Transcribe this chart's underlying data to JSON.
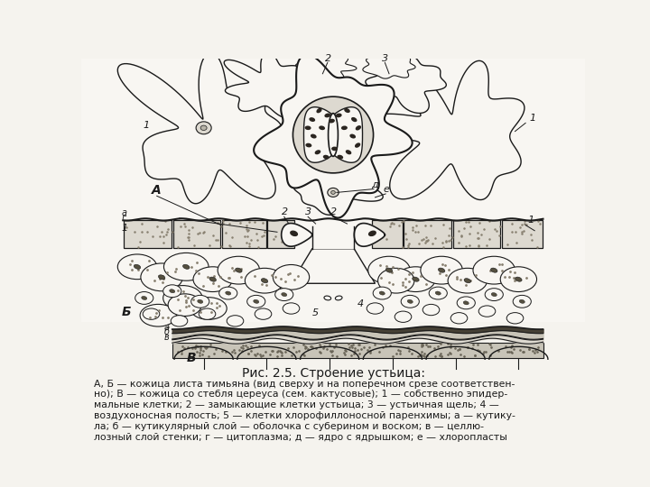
{
  "title": "Рис. 2.5. Строение устьица:",
  "caption_lines": [
    "А, Б — кожица листа тимьяна (вид сверху и на поперечном срезе соответствен-",
    "но); В — кожица со стебля цереуса (сем. кактусовые); 1 — собственно эпидер-",
    "мальные клетки; 2 — замыкающие клетки устьица; 3 — устьичная щель; 4 —",
    "воздухоносная полость; 5 — клетки хлорофиллоносной паренхимы; а — кутику-",
    "ла; б — кутикулярный слой — оболочка с суберином и воском; в — целлю-",
    "лозный слой стенки; г — цитоплазма; д — ядро с ядрышком; е — хлоропласты"
  ],
  "bg_color": "#f5f3ee",
  "line_color": "#1a1a1a",
  "fill_white": "#f8f6f2",
  "fill_light_gray": "#ddd9d0",
  "fill_med_gray": "#b8b4a8",
  "fill_dark": "#2a2520",
  "fill_stipple": "#c8c4b8"
}
